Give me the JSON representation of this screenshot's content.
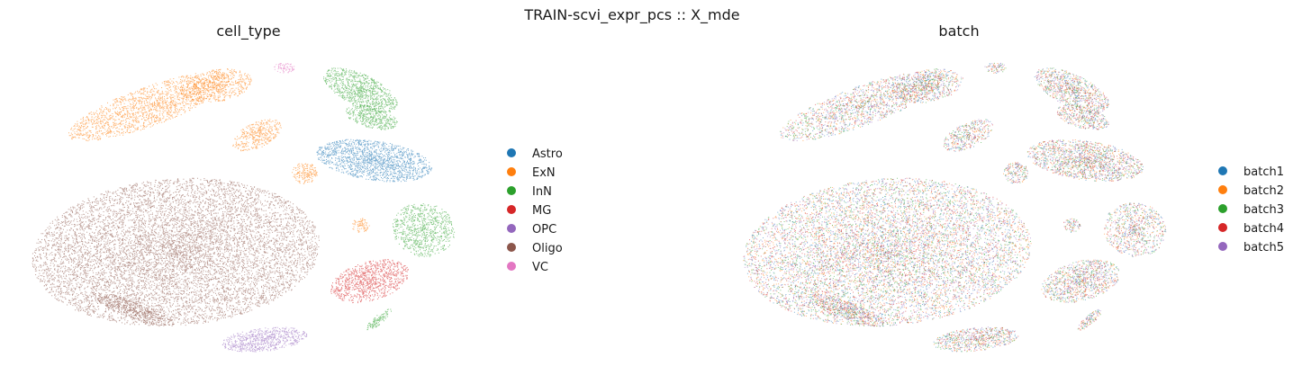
{
  "suptitle": "TRAIN-scvi_expr_pcs :: X_mde",
  "chart_data": [
    {
      "type": "scatter",
      "title": "cell_type",
      "legend_placement": "right",
      "grid": false,
      "axes_visible": false,
      "series": [
        {
          "name": "Astro",
          "color": "#1f77b4"
        },
        {
          "name": "ExN",
          "color": "#ff7f0e"
        },
        {
          "name": "InN",
          "color": "#2ca02c"
        },
        {
          "name": "MG",
          "color": "#d62728"
        },
        {
          "name": "OPC",
          "color": "#9467bd"
        },
        {
          "name": "Oligo",
          "color": "#8c564b"
        },
        {
          "name": "VC",
          "color": "#e377c2"
        }
      ]
    },
    {
      "type": "scatter",
      "title": "batch",
      "legend_placement": "right",
      "grid": false,
      "axes_visible": false,
      "series": [
        {
          "name": "batch1",
          "color": "#1f77b4"
        },
        {
          "name": "batch2",
          "color": "#ff7f0e"
        },
        {
          "name": "batch3",
          "color": "#2ca02c"
        },
        {
          "name": "batch4",
          "color": "#d62728"
        },
        {
          "name": "batch5",
          "color": "#9467bd"
        }
      ]
    }
  ]
}
